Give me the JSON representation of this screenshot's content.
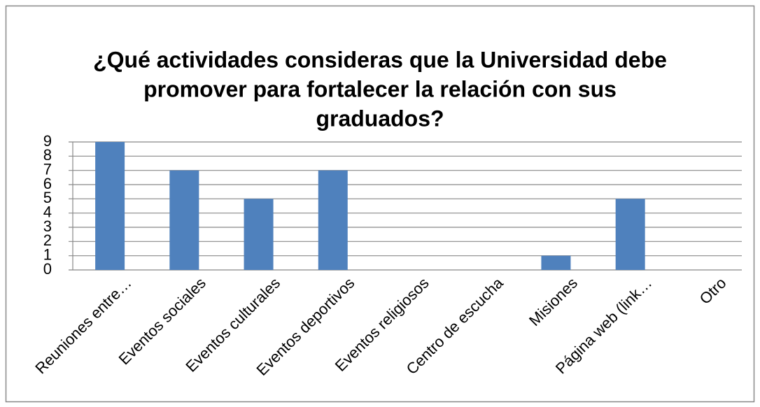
{
  "chart_data": {
    "type": "bar",
    "title": [
      "¿Qué actividades consideras que la Universidad debe",
      "promover para fortalecer la relación con sus",
      "graduados?"
    ],
    "categories": [
      "Reuniones entre…",
      "Eventos sociales",
      "Eventos culturales",
      "Eventos deportivos",
      "Eventos religiosos",
      "Centro de escucha",
      "Misiones",
      "Página web (link…",
      "Otro"
    ],
    "values": [
      9,
      7,
      5,
      7,
      0,
      0,
      1,
      5,
      0
    ],
    "color": "#4f81bd",
    "ylim": [
      0,
      9
    ],
    "yticks": [
      0,
      1,
      2,
      3,
      4,
      5,
      6,
      7,
      8,
      9
    ],
    "grid": true
  }
}
